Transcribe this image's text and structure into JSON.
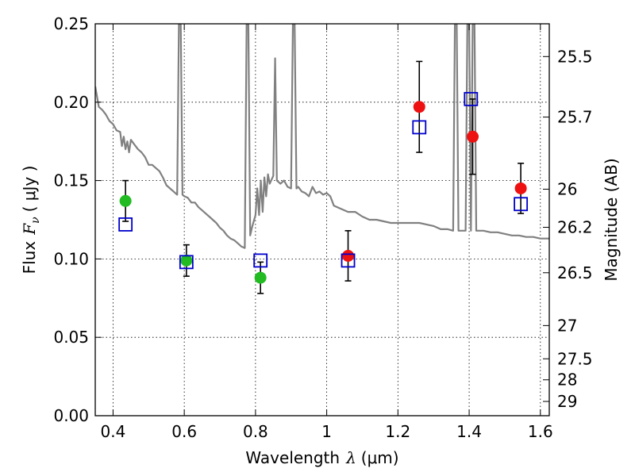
{
  "chart_data": {
    "type": "scatter",
    "xlabel_prefix": "Wavelength",
    "xlabel_symbol": "λ",
    "xlabel_unit": "(μm)",
    "ylabel_prefix": "Flux",
    "ylabel_symbol": "F",
    "ylabel_sub": "ν",
    "ylabel_unit": "( μJy )",
    "y2label": "Magnitude (AB)",
    "xlim": [
      0.35,
      1.625
    ],
    "ylim": [
      0.0,
      0.25
    ],
    "grid": true,
    "x_ticks": [
      0.4,
      0.6,
      0.8,
      1.0,
      1.2,
      1.4,
      1.6
    ],
    "x_tick_labels": [
      "0.4",
      "0.6",
      "0.8",
      "1",
      "1.2",
      "1.4",
      "1.6"
    ],
    "y_ticks": [
      0.0,
      0.05,
      0.1,
      0.15,
      0.2,
      0.25
    ],
    "y_tick_labels": [
      "0.00",
      "0.05",
      "0.10",
      "0.15",
      "0.20",
      "0.25"
    ],
    "y2_ticks": [
      {
        "label": "25.5",
        "flux": 0.2291
      },
      {
        "label": "25.7",
        "flux": 0.1905
      },
      {
        "label": "26",
        "flux": 0.1445
      },
      {
        "label": "26.2",
        "flux": 0.1202
      },
      {
        "label": "26.5",
        "flux": 0.0912
      },
      {
        "label": "27",
        "flux": 0.0575
      },
      {
        "label": "27.5",
        "flux": 0.0363
      },
      {
        "label": "28",
        "flux": 0.0229
      },
      {
        "label": "29",
        "flux": 0.0091
      }
    ],
    "series": [
      {
        "marker": "circle",
        "color": "#22bb22",
        "points": [
          {
            "x": 0.435,
            "y": 0.137,
            "err": 0.013
          },
          {
            "x": 0.606,
            "y": 0.099,
            "err": 0.01
          },
          {
            "x": 0.814,
            "y": 0.088,
            "err": 0.01
          }
        ]
      },
      {
        "marker": "circle",
        "color": "#ee1111",
        "points": [
          {
            "x": 1.06,
            "y": 0.102,
            "err": 0.016
          },
          {
            "x": 1.26,
            "y": 0.197,
            "err": 0.029
          },
          {
            "x": 1.41,
            "y": 0.178,
            "err": 0.024
          },
          {
            "x": 1.545,
            "y": 0.145,
            "err": 0.016
          }
        ]
      },
      {
        "marker": "square-open",
        "color": "#0000cc",
        "points": [
          {
            "x": 0.435,
            "y": 0.122
          },
          {
            "x": 0.606,
            "y": 0.098
          },
          {
            "x": 0.814,
            "y": 0.099
          },
          {
            "x": 1.06,
            "y": 0.099
          },
          {
            "x": 1.26,
            "y": 0.184
          },
          {
            "x": 1.405,
            "y": 0.202
          },
          {
            "x": 1.545,
            "y": 0.135
          }
        ]
      }
    ],
    "spectrum": {
      "color": "#808080",
      "points": [
        [
          0.35,
          0.21
        ],
        [
          0.36,
          0.197
        ],
        [
          0.37,
          0.195
        ],
        [
          0.38,
          0.192
        ],
        [
          0.39,
          0.188
        ],
        [
          0.4,
          0.186
        ],
        [
          0.41,
          0.182
        ],
        [
          0.42,
          0.181
        ],
        [
          0.425,
          0.172
        ],
        [
          0.43,
          0.178
        ],
        [
          0.435,
          0.17
        ],
        [
          0.44,
          0.175
        ],
        [
          0.445,
          0.168
        ],
        [
          0.45,
          0.176
        ],
        [
          0.46,
          0.173
        ],
        [
          0.47,
          0.17
        ],
        [
          0.48,
          0.168
        ],
        [
          0.49,
          0.165
        ],
        [
          0.5,
          0.16
        ],
        [
          0.51,
          0.16
        ],
        [
          0.52,
          0.158
        ],
        [
          0.53,
          0.156
        ],
        [
          0.54,
          0.152
        ],
        [
          0.55,
          0.147
        ],
        [
          0.56,
          0.145
        ],
        [
          0.57,
          0.143
        ],
        [
          0.58,
          0.141
        ],
        [
          0.585,
          0.25
        ],
        [
          0.59,
          0.25
        ],
        [
          0.595,
          0.141
        ],
        [
          0.6,
          0.14
        ],
        [
          0.61,
          0.139
        ],
        [
          0.62,
          0.136
        ],
        [
          0.63,
          0.136
        ],
        [
          0.64,
          0.133
        ],
        [
          0.65,
          0.131
        ],
        [
          0.66,
          0.129
        ],
        [
          0.67,
          0.127
        ],
        [
          0.68,
          0.125
        ],
        [
          0.69,
          0.123
        ],
        [
          0.7,
          0.12
        ],
        [
          0.71,
          0.118
        ],
        [
          0.72,
          0.115
        ],
        [
          0.73,
          0.113
        ],
        [
          0.74,
          0.112
        ],
        [
          0.75,
          0.11
        ],
        [
          0.76,
          0.108
        ],
        [
          0.77,
          0.107
        ],
        [
          0.775,
          0.25
        ],
        [
          0.78,
          0.25
        ],
        [
          0.785,
          0.115
        ],
        [
          0.79,
          0.12
        ],
        [
          0.8,
          0.128
        ],
        [
          0.805,
          0.145
        ],
        [
          0.81,
          0.128
        ],
        [
          0.815,
          0.15
        ],
        [
          0.82,
          0.13
        ],
        [
          0.825,
          0.152
        ],
        [
          0.83,
          0.14
        ],
        [
          0.835,
          0.154
        ],
        [
          0.84,
          0.148
        ],
        [
          0.85,
          0.153
        ],
        [
          0.855,
          0.228
        ],
        [
          0.86,
          0.15
        ],
        [
          0.87,
          0.148
        ],
        [
          0.88,
          0.15
        ],
        [
          0.89,
          0.146
        ],
        [
          0.9,
          0.145
        ],
        [
          0.905,
          0.25
        ],
        [
          0.91,
          0.25
        ],
        [
          0.915,
          0.145
        ],
        [
          0.92,
          0.146
        ],
        [
          0.93,
          0.143
        ],
        [
          0.94,
          0.142
        ],
        [
          0.95,
          0.14
        ],
        [
          0.96,
          0.146
        ],
        [
          0.97,
          0.142
        ],
        [
          0.98,
          0.143
        ],
        [
          0.99,
          0.141
        ],
        [
          1.0,
          0.142
        ],
        [
          1.01,
          0.14
        ],
        [
          1.02,
          0.134
        ],
        [
          1.03,
          0.133
        ],
        [
          1.04,
          0.132
        ],
        [
          1.06,
          0.13
        ],
        [
          1.08,
          0.13
        ],
        [
          1.1,
          0.127
        ],
        [
          1.12,
          0.125
        ],
        [
          1.14,
          0.125
        ],
        [
          1.16,
          0.124
        ],
        [
          1.18,
          0.123
        ],
        [
          1.2,
          0.123
        ],
        [
          1.22,
          0.123
        ],
        [
          1.24,
          0.123
        ],
        [
          1.26,
          0.123
        ],
        [
          1.28,
          0.122
        ],
        [
          1.3,
          0.121
        ],
        [
          1.32,
          0.119
        ],
        [
          1.34,
          0.119
        ],
        [
          1.355,
          0.118
        ],
        [
          1.36,
          0.25
        ],
        [
          1.365,
          0.25
        ],
        [
          1.37,
          0.118
        ],
        [
          1.38,
          0.118
        ],
        [
          1.39,
          0.118
        ],
        [
          1.395,
          0.25
        ],
        [
          1.4,
          0.25
        ],
        [
          1.405,
          0.118
        ],
        [
          1.41,
          0.25
        ],
        [
          1.415,
          0.25
        ],
        [
          1.42,
          0.118
        ],
        [
          1.44,
          0.118
        ],
        [
          1.46,
          0.117
        ],
        [
          1.48,
          0.117
        ],
        [
          1.5,
          0.116
        ],
        [
          1.52,
          0.115
        ],
        [
          1.54,
          0.115
        ],
        [
          1.56,
          0.114
        ],
        [
          1.58,
          0.114
        ],
        [
          1.6,
          0.113
        ],
        [
          1.625,
          0.113
        ]
      ]
    }
  }
}
